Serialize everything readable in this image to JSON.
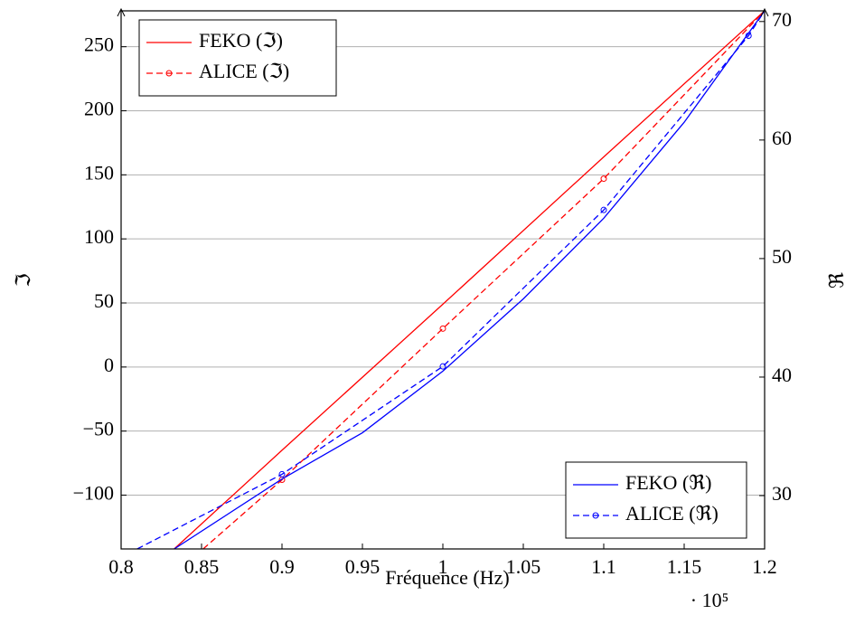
{
  "chart_data": {
    "type": "line",
    "x_label": "Fréquence (Hz)",
    "x_scale_label": "· 10⁵",
    "y_label": "ℑ",
    "y2_label": "ℜ",
    "xlim": [
      0.8,
      1.2
    ],
    "xticks": [
      0.8,
      0.85,
      0.9,
      0.95,
      1,
      1.05,
      1.1,
      1.15,
      1.2
    ],
    "ylim": [
      -142,
      278
    ],
    "yticks": [
      {
        "value": -100,
        "label": "−100"
      },
      {
        "value": -50,
        "label": "−50"
      },
      0,
      50,
      100,
      150,
      200,
      250
    ],
    "y2lim": [
      25.5,
      70.9
    ],
    "y2ticks": [
      30,
      40,
      50,
      60,
      70
    ],
    "grid": true,
    "series": [
      {
        "name": "FEKO (ℑ)",
        "color": "#ff0000",
        "dash": false,
        "legend": "top-left",
        "x": [
          0.833,
          0.9,
          1.0,
          1.1,
          1.2
        ],
        "values": [
          -142,
          -65,
          49,
          164,
          278
        ]
      },
      {
        "name": "ALICE (ℑ)",
        "color": "#ff0000",
        "dash": true,
        "legend": "top-left",
        "x": [
          0.851,
          0.9,
          1.0,
          1.1,
          1.2
        ],
        "values": [
          -142,
          -88,
          30,
          147,
          278
        ]
      },
      {
        "name": "FEKO (ℜ)",
        "color": "#0000ff",
        "dash": false,
        "axis": "y2",
        "legend": "bottom-right",
        "x": [
          0.833,
          0.9,
          0.95,
          1.0,
          1.05,
          1.1,
          1.15,
          1.2
        ],
        "values": [
          25.5,
          31.4,
          35.3,
          40.5,
          46.6,
          53.4,
          61.5,
          70.9
        ]
      },
      {
        "name": "ALICE (ℜ)",
        "color": "#0000ff",
        "dash": true,
        "axis": "y2",
        "legend": "bottom-right",
        "x": [
          0.81,
          0.9,
          1.0,
          1.1,
          1.19,
          1.2
        ],
        "values": [
          25.5,
          31.8,
          40.9,
          54.1,
          68.8,
          70.9
        ]
      }
    ]
  }
}
